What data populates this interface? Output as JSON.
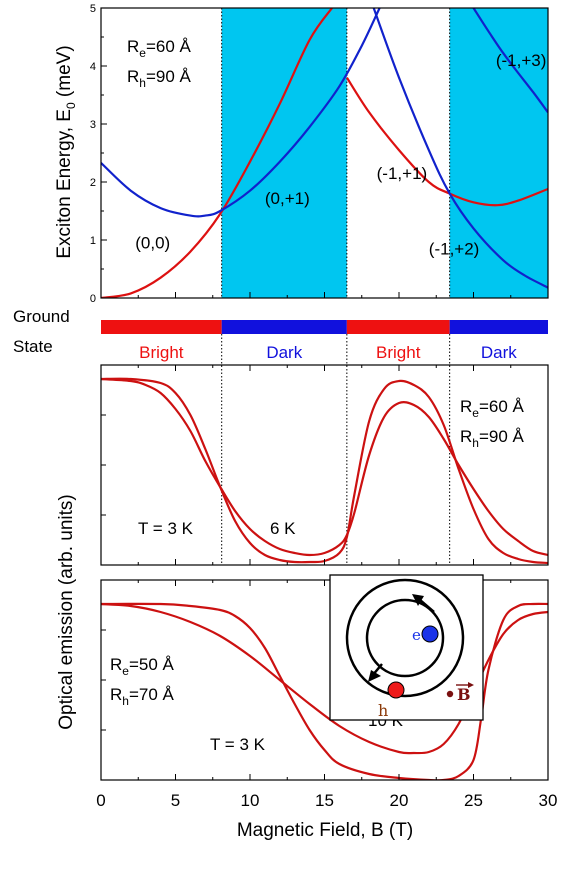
{
  "chart_data": [
    {
      "type": "line",
      "name": "energy-panel",
      "ylabel": "Exciton Energy, E",
      "ylabel_sub": "0",
      "ylabel_unit": " (meV)",
      "xlim": [
        0,
        30
      ],
      "ylim": [
        0,
        5
      ],
      "yticks": [
        "0",
        "1",
        "2",
        "3",
        "4",
        "5"
      ],
      "params": {
        "Re_main": "R",
        "Re_sub": "e",
        "Re_val": "=60 Å",
        "Rh_main": "R",
        "Rh_sub": "h",
        "Rh_val": "=90 Å"
      },
      "dark_regions": [
        [
          8.1,
          16.5
        ],
        [
          23.4,
          30
        ]
      ],
      "series": [
        {
          "color": "#dd1111",
          "x": [
            0,
            2,
            4,
            6,
            8,
            10,
            12,
            14,
            15.5
          ],
          "y": [
            0,
            0.08,
            0.35,
            0.8,
            1.45,
            2.35,
            3.35,
            4.45,
            5.0
          ]
        },
        {
          "color": "#dd1111",
          "x": [
            16.5,
            18,
            20,
            22,
            23.4,
            25,
            26.6,
            28,
            30
          ],
          "y": [
            3.8,
            3.2,
            2.55,
            2.0,
            1.8,
            1.65,
            1.6,
            1.68,
            1.88
          ]
        },
        {
          "color": "#1122cc",
          "x": [
            0,
            2,
            4,
            6,
            7,
            8,
            10,
            12,
            14,
            16,
            17.5,
            18.7
          ],
          "y": [
            2.33,
            1.85,
            1.55,
            1.42,
            1.42,
            1.5,
            1.85,
            2.35,
            2.95,
            3.65,
            4.35,
            5.0
          ]
        },
        {
          "color": "#1122cc",
          "x": [
            18.3,
            20,
            22,
            23.4,
            25,
            27,
            28.5,
            30
          ],
          "y": [
            5.0,
            3.8,
            2.55,
            1.8,
            1.2,
            0.65,
            0.38,
            0.18
          ]
        },
        {
          "color": "#1122cc",
          "x": [
            25.0,
            26,
            27,
            28,
            29,
            30
          ],
          "y": [
            5.0,
            4.6,
            4.22,
            3.88,
            3.55,
            3.2
          ]
        }
      ],
      "annotations": [
        {
          "text": "(0,0)",
          "x": 2.3,
          "y": 0.85
        },
        {
          "text": "(0,+1)",
          "x": 11.0,
          "y": 1.62
        },
        {
          "text": "(-1,+1)",
          "x": 18.5,
          "y": 2.05
        },
        {
          "text": "(-1,+2)",
          "x": 22.0,
          "y": 0.75
        },
        {
          "text": "(-1,+3)",
          "x": 26.5,
          "y": 4.0
        }
      ]
    },
    {
      "type": "bar",
      "name": "ground-state-bar",
      "label_line1": "Ground",
      "label_line2": "State",
      "segments": [
        {
          "from": 0,
          "to": 8.1,
          "label": "Bright",
          "color": "#ee1111"
        },
        {
          "from": 8.1,
          "to": 16.5,
          "label": "Dark",
          "color": "#1111dd"
        },
        {
          "from": 16.5,
          "to": 23.4,
          "label": "Bright",
          "color": "#ee1111"
        },
        {
          "from": 23.4,
          "to": 30,
          "label": "Dark",
          "color": "#1111dd"
        }
      ]
    },
    {
      "type": "line",
      "name": "emission-panel-1",
      "xlim": [
        0,
        30
      ],
      "ylim": [
        0,
        1
      ],
      "dividers": [
        8.1,
        16.5,
        23.4
      ],
      "params": {
        "Re_main": "R",
        "Re_sub": "e",
        "Re_val": "=60 Å",
        "Rh_main": "R",
        "Rh_sub": "h",
        "Rh_val": "=90 Å"
      },
      "temp_labels": [
        "T = 3 K",
        "6 K"
      ],
      "series": [
        {
          "color": "#cc1111",
          "x": [
            0,
            2,
            4,
            5,
            6,
            7,
            8,
            9,
            10,
            11,
            12,
            13,
            14,
            15,
            16,
            16.5,
            17,
            18,
            19,
            20,
            21,
            22,
            23,
            24,
            25,
            26,
            27,
            28,
            29,
            30
          ],
          "y": [
            0.93,
            0.93,
            0.91,
            0.86,
            0.75,
            0.58,
            0.39,
            0.22,
            0.11,
            0.05,
            0.025,
            0.015,
            0.015,
            0.02,
            0.06,
            0.14,
            0.35,
            0.72,
            0.88,
            0.92,
            0.9,
            0.84,
            0.7,
            0.48,
            0.28,
            0.13,
            0.06,
            0.03,
            0.015,
            0.01
          ]
        },
        {
          "color": "#cc1111",
          "x": [
            0,
            2,
            3,
            4,
            5,
            6,
            7,
            8,
            9,
            10,
            11,
            12,
            13,
            14,
            15,
            16,
            16.5,
            17,
            18,
            19,
            20,
            21,
            22,
            23,
            24,
            25,
            26,
            27,
            28,
            29,
            30
          ],
          "y": [
            0.93,
            0.92,
            0.9,
            0.86,
            0.78,
            0.67,
            0.52,
            0.39,
            0.27,
            0.18,
            0.12,
            0.08,
            0.06,
            0.05,
            0.06,
            0.1,
            0.15,
            0.26,
            0.55,
            0.74,
            0.81,
            0.8,
            0.74,
            0.63,
            0.5,
            0.38,
            0.27,
            0.18,
            0.12,
            0.07,
            0.05
          ]
        }
      ]
    },
    {
      "type": "line",
      "name": "emission-panel-2",
      "xlim": [
        0,
        30
      ],
      "ylim": [
        0,
        1
      ],
      "xticks": [
        "0",
        "5",
        "10",
        "15",
        "20",
        "25",
        "30"
      ],
      "xlabel": "Magnetic Field, B (T)",
      "ylabel": "Optical emission (arb. units)",
      "params": {
        "Re_main": "R",
        "Re_sub": "e",
        "Re_val": "=50 Å",
        "Rh_main": "R",
        "Rh_sub": "h",
        "Rh_val": "=70 Å"
      },
      "temp_labels": [
        "T = 3 K",
        "10 K"
      ],
      "inset": {
        "electron": "e",
        "hole": "h",
        "field": "B"
      },
      "series": [
        {
          "color": "#cc1111",
          "x": [
            0,
            4,
            6,
            8,
            9,
            10,
            11,
            12,
            13,
            14,
            15,
            16,
            18,
            20,
            22,
            23,
            24,
            25,
            25.5,
            26,
            27,
            28,
            29,
            30
          ],
          "y": [
            0.88,
            0.88,
            0.87,
            0.85,
            0.82,
            0.76,
            0.66,
            0.52,
            0.38,
            0.25,
            0.15,
            0.08,
            0.03,
            0.01,
            0.0,
            0.0,
            0.02,
            0.1,
            0.3,
            0.55,
            0.8,
            0.87,
            0.88,
            0.88
          ]
        },
        {
          "color": "#cc1111",
          "x": [
            0,
            2,
            4,
            6,
            8,
            10,
            12,
            14,
            16,
            18,
            20,
            21,
            22,
            23,
            24,
            25,
            26,
            27,
            28,
            29,
            30
          ],
          "y": [
            0.88,
            0.87,
            0.84,
            0.79,
            0.72,
            0.62,
            0.5,
            0.38,
            0.27,
            0.19,
            0.14,
            0.135,
            0.14,
            0.18,
            0.28,
            0.44,
            0.6,
            0.73,
            0.8,
            0.83,
            0.84
          ]
        }
      ]
    }
  ]
}
